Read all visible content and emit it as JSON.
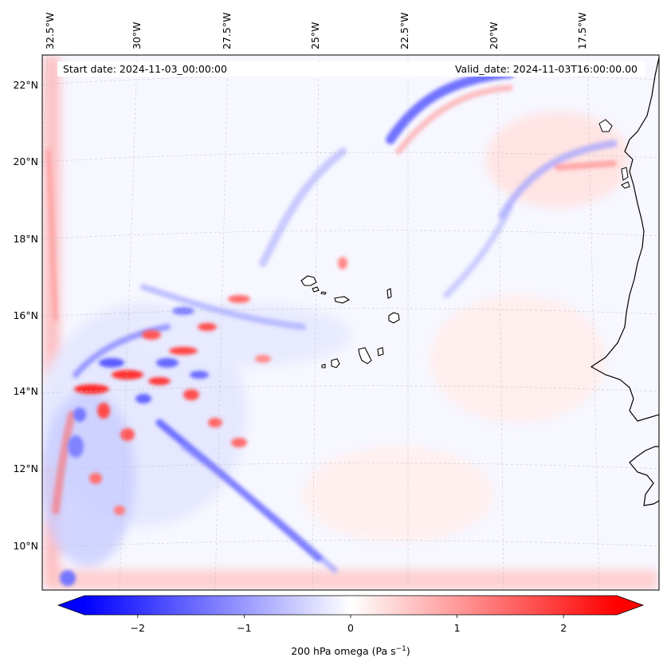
{
  "map": {
    "start_date_label": "Start date: 2024-11-03_00:00:00",
    "valid_date_label": "Valid_date: 2024-11-03T16:00:00.00",
    "lon_labels": [
      "32.5°W",
      "30°W",
      "27.5°W",
      "25°W",
      "22.5°W",
      "20°W",
      "17.5°W"
    ],
    "lat_labels": [
      "22°N",
      "20°N",
      "18°N",
      "16°N",
      "14°N",
      "12°N",
      "10°N"
    ],
    "field_variable": "omega",
    "positive_color": "#ff0000",
    "negative_color": "#0000ff",
    "neutral_color": "#ffffff",
    "coastline_color": "#000000"
  },
  "colorbar": {
    "ticks": [
      "−2",
      "−1",
      "0",
      "1",
      "2"
    ],
    "tick_values": [
      -2,
      -1,
      0,
      1,
      2
    ],
    "range": [
      -2.5,
      2.5
    ],
    "label_prefix": "200 hPa omega (Pa s",
    "label_exp": "−1",
    "label_suffix": ")",
    "extend": "both",
    "colormap": "bwr"
  }
}
